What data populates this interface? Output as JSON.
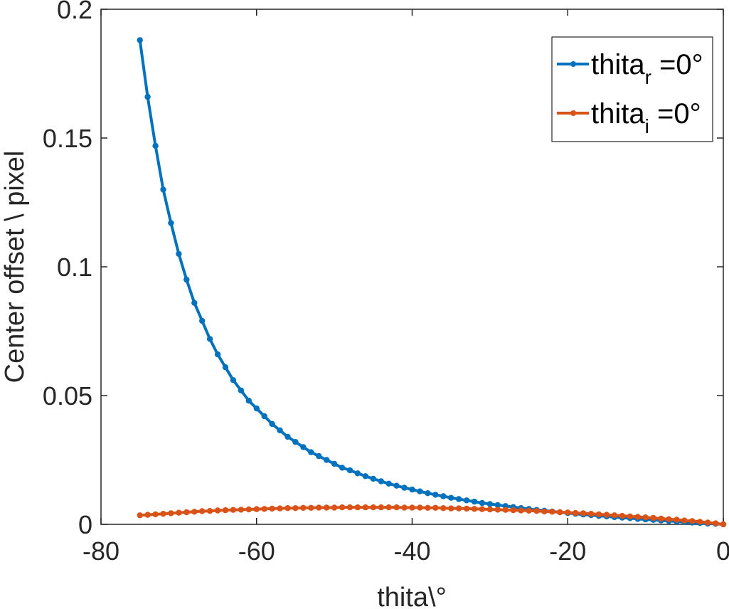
{
  "chart_data": {
    "type": "line",
    "title": "",
    "xlabel": "thita\\°",
    "ylabel": "Center offset \\ pixel",
    "xlim": [
      -80,
      0
    ],
    "ylim": [
      0,
      0.2
    ],
    "xticks": [
      -80,
      -60,
      -40,
      -20,
      0
    ],
    "xtick_labels": [
      "-80",
      "-60",
      "-40",
      "-20",
      "0"
    ],
    "yticks": [
      0,
      0.05,
      0.1,
      0.15,
      0.2
    ],
    "ytick_labels": [
      "0",
      "0.05",
      "0.1",
      "0.15",
      "0.2"
    ],
    "grid": false,
    "legend_position": "upper right",
    "x": [
      -75,
      -74,
      -73,
      -72,
      -71,
      -70,
      -69,
      -68,
      -67,
      -66,
      -65,
      -64,
      -63,
      -62,
      -61,
      -60,
      -59,
      -58,
      -57,
      -56,
      -55,
      -54,
      -53,
      -52,
      -51,
      -50,
      -49,
      -48,
      -47,
      -46,
      -45,
      -44,
      -43,
      -42,
      -41,
      -40,
      -39,
      -38,
      -37,
      -36,
      -35,
      -34,
      -33,
      -32,
      -31,
      -30,
      -29,
      -28,
      -27,
      -26,
      -25,
      -24,
      -23,
      -22,
      -21,
      -20,
      -19,
      -18,
      -17,
      -16,
      -15,
      -14,
      -13,
      -12,
      -11,
      -10,
      -9,
      -8,
      -7,
      -6,
      -5,
      -4,
      -3,
      -2,
      -1,
      0
    ],
    "series": [
      {
        "name": "thita_r =0°",
        "legend_base": "thita",
        "legend_sub": "r",
        "legend_suffix": " =0°",
        "color": "#0072BD",
        "values": [
          0.188,
          0.166,
          0.147,
          0.13,
          0.117,
          0.105,
          0.095,
          0.086,
          0.079,
          0.072,
          0.066,
          0.061,
          0.056,
          0.052,
          0.048,
          0.045,
          0.042,
          0.039,
          0.0365,
          0.034,
          0.032,
          0.03,
          0.028,
          0.0265,
          0.025,
          0.0235,
          0.022,
          0.021,
          0.0198,
          0.0187,
          0.0177,
          0.0167,
          0.0158,
          0.015,
          0.0142,
          0.0135,
          0.0128,
          0.0121,
          0.0115,
          0.0109,
          0.0103,
          0.0098,
          0.0093,
          0.0088,
          0.0083,
          0.0079,
          0.0075,
          0.0071,
          0.0067,
          0.0063,
          0.006,
          0.0056,
          0.0053,
          0.005,
          0.0047,
          0.0044,
          0.0041,
          0.0038,
          0.0036,
          0.0033,
          0.0031,
          0.0028,
          0.0026,
          0.0024,
          0.0021,
          0.0019,
          0.0017,
          0.0015,
          0.0013,
          0.0011,
          0.0009,
          0.0007,
          0.0005,
          0.0003,
          0.0002,
          0
        ]
      },
      {
        "name": "thita_i =0°",
        "legend_base": "thita",
        "legend_sub": "i",
        "legend_suffix": " =0°",
        "color": "#D95319",
        "values": [
          0.0035,
          0.0037,
          0.0039,
          0.0041,
          0.0043,
          0.0045,
          0.0047,
          0.0049,
          0.0051,
          0.0052,
          0.0054,
          0.0055,
          0.0056,
          0.0057,
          0.0058,
          0.0059,
          0.006,
          0.0061,
          0.0062,
          0.0063,
          0.0063,
          0.0064,
          0.0064,
          0.0065,
          0.0065,
          0.0065,
          0.0066,
          0.0066,
          0.0066,
          0.0066,
          0.0066,
          0.0066,
          0.0066,
          0.0066,
          0.0065,
          0.0065,
          0.0065,
          0.0064,
          0.0064,
          0.0063,
          0.0062,
          0.0062,
          0.0061,
          0.006,
          0.0059,
          0.0058,
          0.0057,
          0.0056,
          0.0055,
          0.0054,
          0.0053,
          0.0052,
          0.005,
          0.0049,
          0.0047,
          0.0046,
          0.0044,
          0.0043,
          0.0041,
          0.0039,
          0.0037,
          0.0035,
          0.0033,
          0.0031,
          0.0029,
          0.0027,
          0.0025,
          0.0022,
          0.002,
          0.0018,
          0.0015,
          0.0013,
          0.001,
          0.0007,
          0.0004,
          0
        ]
      }
    ]
  }
}
